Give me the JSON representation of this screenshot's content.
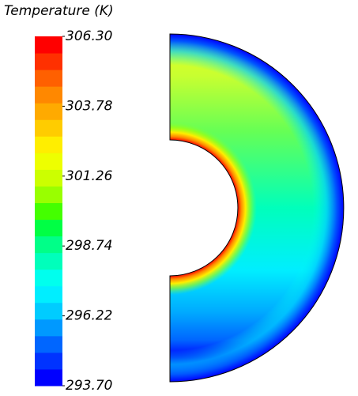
{
  "chart_data": {
    "type": "contour",
    "title": "Temperature (K)",
    "ylim": [
      293.7,
      306.3
    ],
    "yticks": [
      {
        "value": 293.7,
        "label": "293.70"
      },
      {
        "value": 296.22,
        "label": "296.22"
      },
      {
        "value": 298.74,
        "label": "298.74"
      },
      {
        "value": 301.26,
        "label": "301.26"
      },
      {
        "value": 303.78,
        "label": "303.78"
      },
      {
        "value": 306.3,
        "label": "306.30"
      }
    ],
    "colormap": [
      "#0000ff",
      "#0033ff",
      "#0066ff",
      "#0099ff",
      "#00ccff",
      "#00eeff",
      "#00ffee",
      "#00ffbb",
      "#00ff88",
      "#00ff44",
      "#44ff00",
      "#99ff00",
      "#ccff00",
      "#eeff00",
      "#ffee00",
      "#ffcc00",
      "#ffaa00",
      "#ff8800",
      "#ff6000",
      "#ff3000",
      "#ff0000"
    ]
  }
}
